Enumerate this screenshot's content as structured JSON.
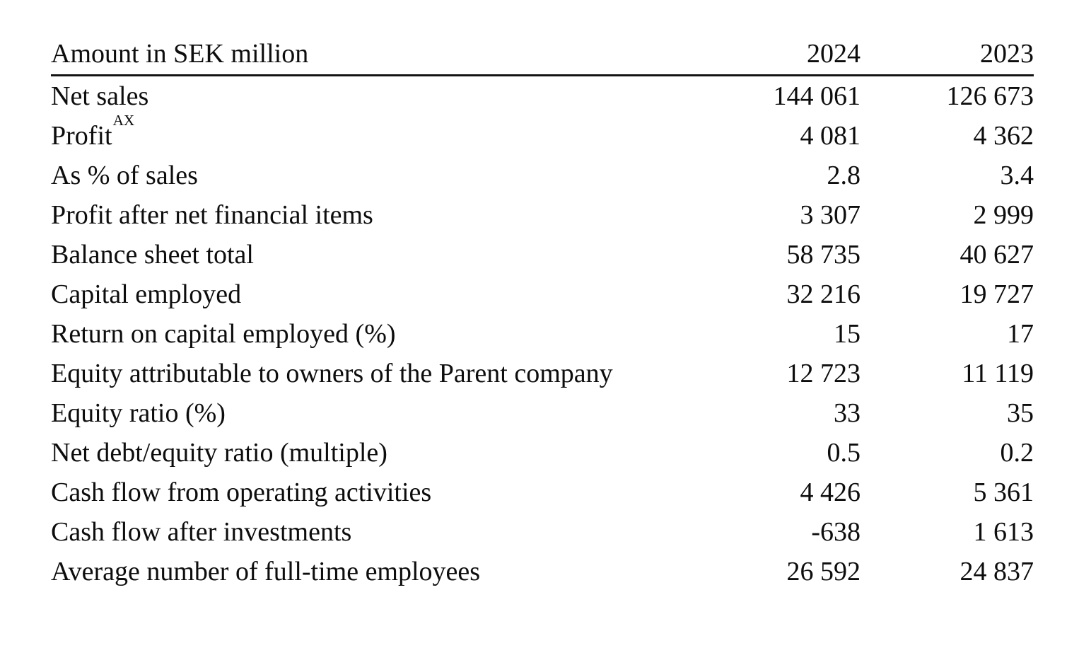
{
  "table": {
    "title_column_header": "Amount in SEK million",
    "year_columns": [
      "2024",
      "2023"
    ],
    "header": {
      "label": "Amount in SEK million",
      "col_2024": "2024",
      "col_2023": "2023"
    },
    "rows": [
      {
        "label": "Net sales",
        "sup": "",
        "v2024": "144 061",
        "v2023": "126 673"
      },
      {
        "label": "Profit",
        "sup": "AX",
        "v2024": "4 081",
        "v2023": "4 362"
      },
      {
        "label": "As % of sales",
        "sup": "",
        "v2024": "2.8",
        "v2023": "3.4"
      },
      {
        "label": "Profit after net financial items",
        "sup": "",
        "v2024": "3 307",
        "v2023": "2 999"
      },
      {
        "label": "Balance sheet total",
        "sup": "",
        "v2024": "58 735",
        "v2023": "40 627"
      },
      {
        "label": "Capital employed",
        "sup": "",
        "v2024": "32 216",
        "v2023": "19 727"
      },
      {
        "label": "Return on capital employed (%)",
        "sup": "",
        "v2024": "15",
        "v2023": "17"
      },
      {
        "label": "Equity attributable to owners of the Parent company",
        "sup": "",
        "v2024": "12 723",
        "v2023": "11 119"
      },
      {
        "label": "Equity ratio (%)",
        "sup": "",
        "v2024": "33",
        "v2023": "35"
      },
      {
        "label": "Net debt/equity ratio (multiple)",
        "sup": "",
        "v2024": "0.5",
        "v2023": "0.2"
      },
      {
        "label": "Cash flow from operating activities",
        "sup": "",
        "v2024": "4 426",
        "v2023": "5 361"
      },
      {
        "label": "Cash flow after investments",
        "sup": "",
        "v2024": "-638",
        "v2023": "1 613"
      },
      {
        "label": "Average number of full-time employees",
        "sup": "",
        "v2024": "26 592",
        "v2023": "24 837"
      }
    ],
    "colors": {
      "text": "#0d0d0d",
      "rule": "#141414",
      "background": "#ffffff"
    }
  }
}
